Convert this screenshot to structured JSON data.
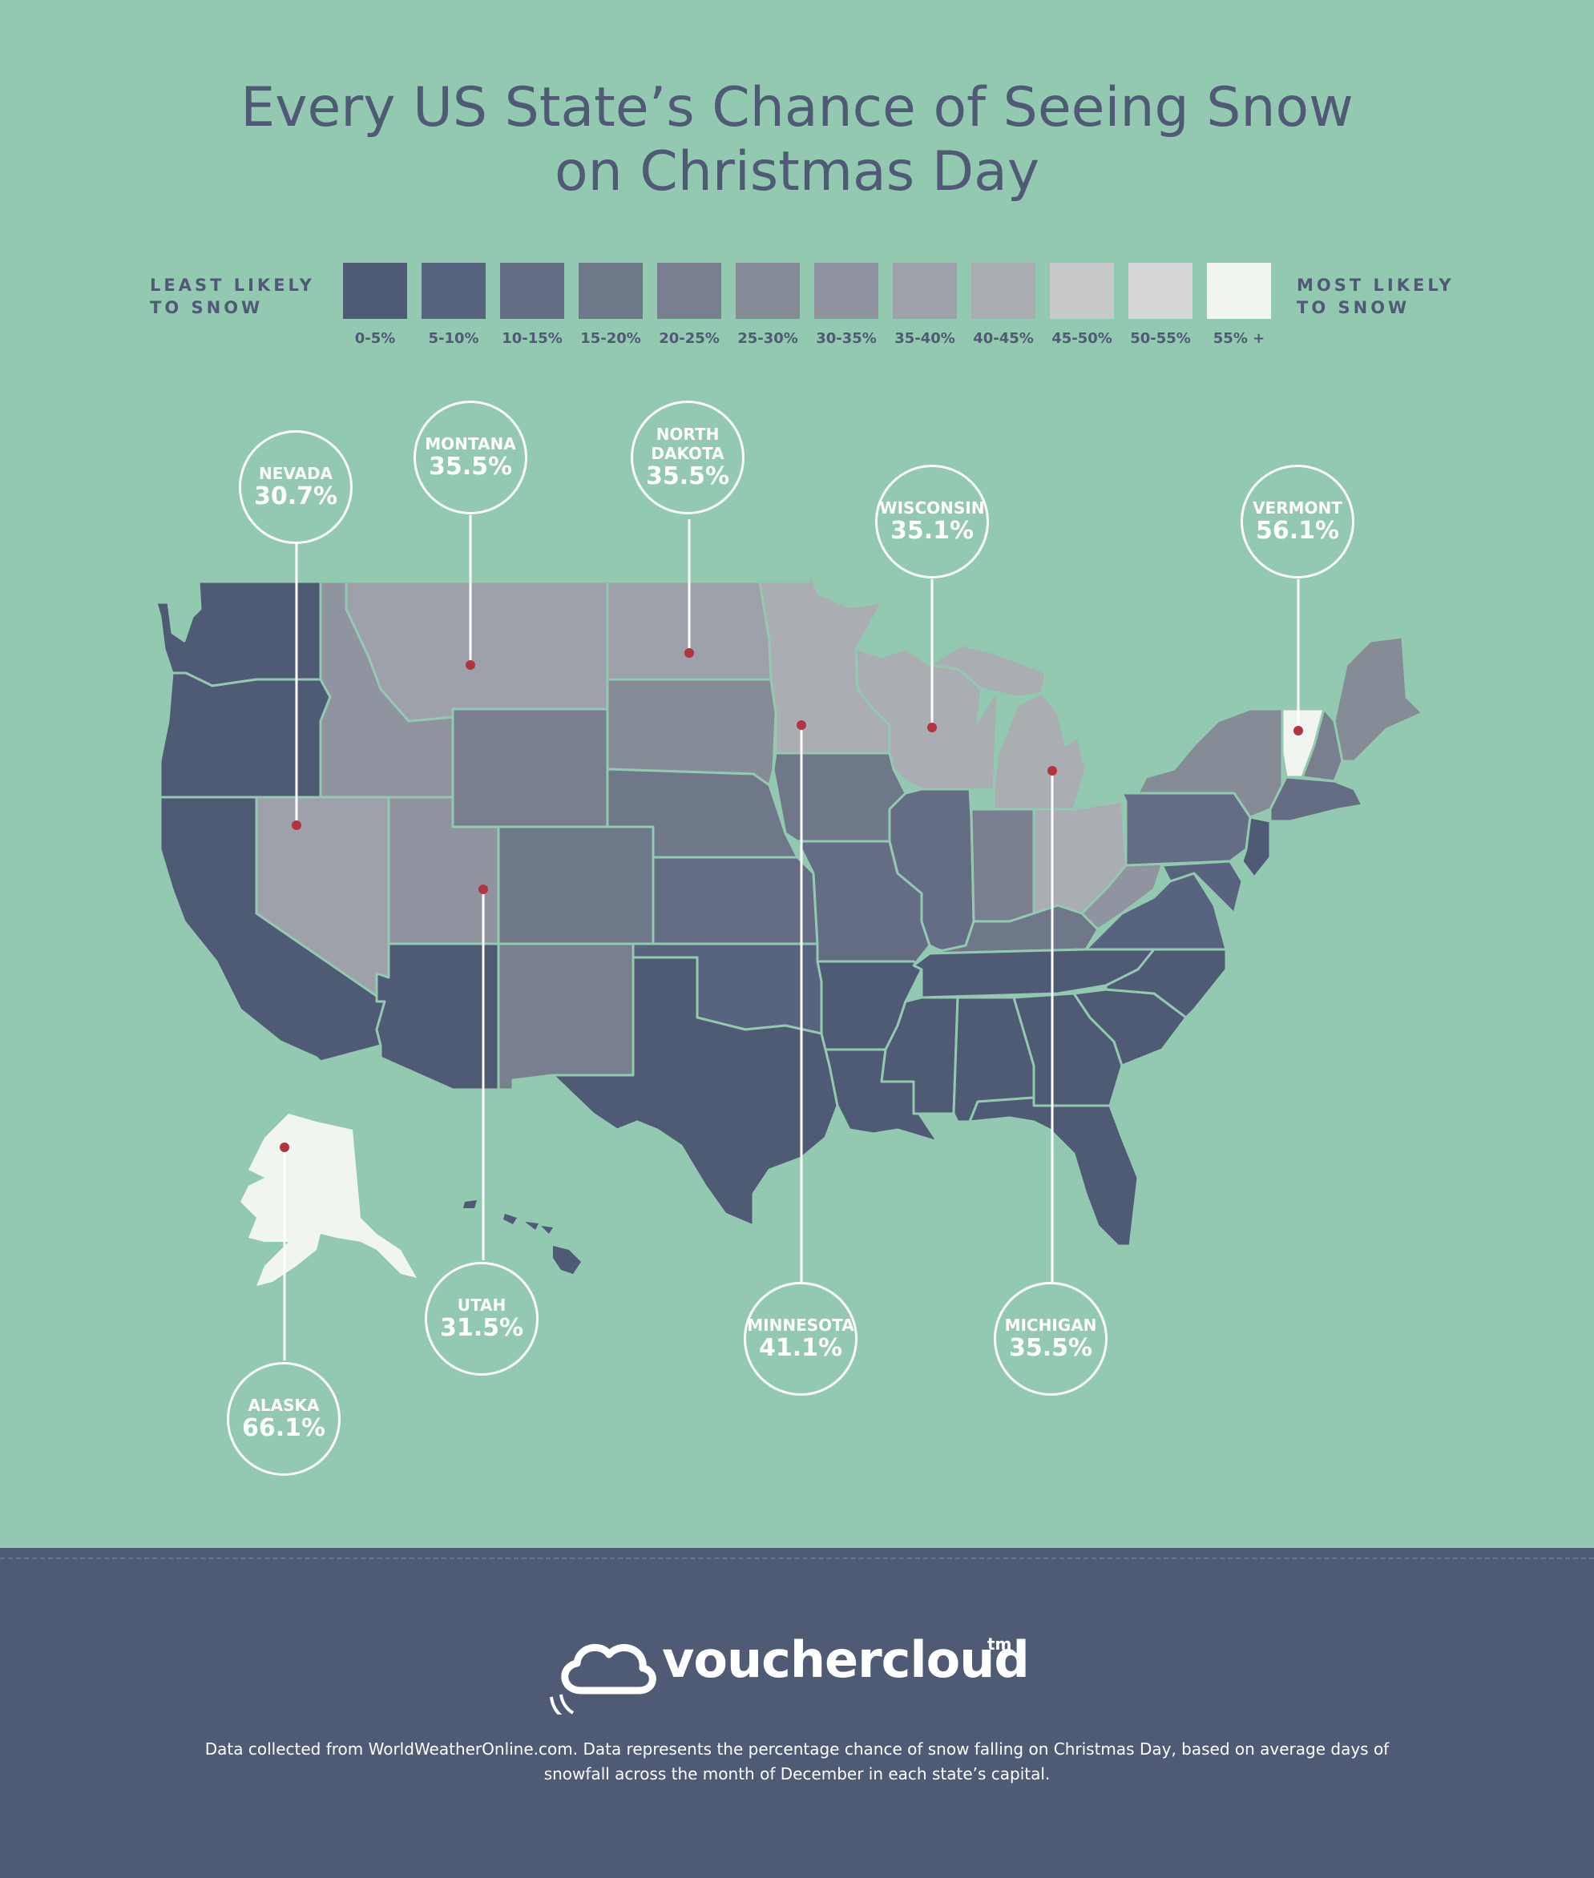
{
  "title_line1": "Every US State’s Chance of Seeing Snow",
  "title_line2": "on Christmas Day",
  "legend": {
    "least": [
      "LEAST LIKELY",
      "TO SNOW"
    ],
    "most": [
      "MOST LIKELY",
      "TO SNOW"
    ],
    "bins": [
      {
        "label": "0-5%",
        "color": "#4f5a74"
      },
      {
        "label": "5-10%",
        "color": "#586380"
      },
      {
        "label": "10-15%",
        "color": "#646d83"
      },
      {
        "label": "15-20%",
        "color": "#6e7889"
      },
      {
        "label": "20-25%",
        "color": "#797f8e"
      },
      {
        "label": "25-30%",
        "color": "#858c95"
      },
      {
        "label": "30-35%",
        "color": "#90949f"
      },
      {
        "label": "35-40%",
        "color": "#9ea1a9"
      },
      {
        "label": "40-45%",
        "color": "#aaaeb3"
      },
      {
        "label": "45-50%",
        "color": "#c7c9ca"
      },
      {
        "label": "50-55%",
        "color": "#d4d6d8"
      },
      {
        "label": "55% +",
        "color": "#f1f5ef"
      }
    ]
  },
  "callouts": [
    {
      "name": "NEVADA",
      "pct": "30.7%"
    },
    {
      "name": "MONTANA",
      "pct": "35.5%"
    },
    {
      "name": "NORTH DAKOTA",
      "pct": "35.5%"
    },
    {
      "name": "WISCONSIN",
      "pct": "35.1%"
    },
    {
      "name": "VERMONT",
      "pct": "56.1%"
    },
    {
      "name": "UTAH",
      "pct": "31.5%"
    },
    {
      "name": "MINNESOTA",
      "pct": "41.1%"
    },
    {
      "name": "MICHIGAN",
      "pct": "35.5%"
    },
    {
      "name": "ALASKA",
      "pct": "66.1%"
    }
  ],
  "brand": "vouchercloud",
  "brand_tm": "tm",
  "note": "Data collected from WorldWeatherOnline.com. Data represents the percentage chance of snow falling on Christmas Day, based on average days of snowfall across the month of December in each state’s capital.",
  "colors": {
    "background": "#93c8b1",
    "footer": "#4f5a74",
    "marker": "#b3343f",
    "border": "#93c8b1"
  }
}
